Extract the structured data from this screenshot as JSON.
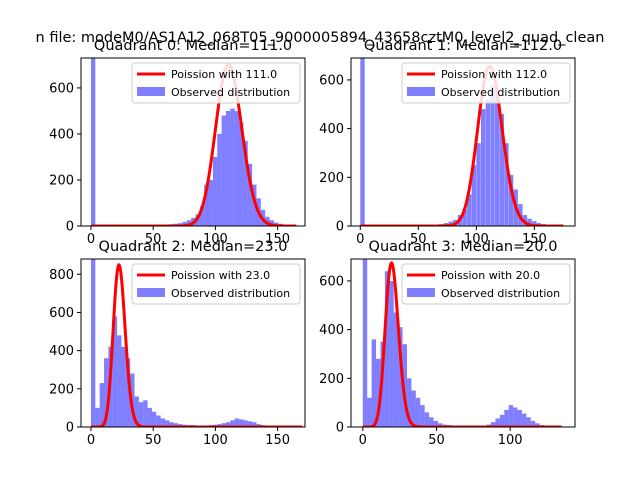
{
  "suptitle": "n file: modeM0/AS1A12_068T05_9000005894_43658cztM0_level2_quad_clean",
  "colors": {
    "hist": "#0000ff",
    "hist_opacity": 0.5,
    "fit": "#ff0000",
    "axes": "#000000",
    "legend_border": "#cccccc"
  },
  "chart_data": [
    {
      "type": "bar",
      "title": "Quadrant 0: Median=111.0",
      "xlabel": "",
      "ylabel": "",
      "xlim": [
        -8,
        172
      ],
      "ylim": [
        0,
        730
      ],
      "xticks": [
        0,
        50,
        100,
        150
      ],
      "yticks": [
        0,
        200,
        400,
        600
      ],
      "grid": false,
      "legend_position": "top-right",
      "bin_width": 3.5,
      "hist": {
        "name": "Observed distribution",
        "values": [
          {
            "x": 0,
            "y": 730
          },
          {
            "x": 59.5,
            "y": 5
          },
          {
            "x": 63,
            "y": 8
          },
          {
            "x": 66.5,
            "y": 10
          },
          {
            "x": 70,
            "y": 12
          },
          {
            "x": 73.5,
            "y": 18
          },
          {
            "x": 77,
            "y": 25
          },
          {
            "x": 80.5,
            "y": 35
          },
          {
            "x": 84,
            "y": 50
          },
          {
            "x": 87.5,
            "y": 85
          },
          {
            "x": 91,
            "y": 180
          },
          {
            "x": 94.5,
            "y": 200
          },
          {
            "x": 98,
            "y": 300
          },
          {
            "x": 101.5,
            "y": 400
          },
          {
            "x": 105,
            "y": 480
          },
          {
            "x": 108.5,
            "y": 500
          },
          {
            "x": 112,
            "y": 510
          },
          {
            "x": 115.5,
            "y": 500
          },
          {
            "x": 119,
            "y": 450
          },
          {
            "x": 122.5,
            "y": 370
          },
          {
            "x": 126,
            "y": 270
          },
          {
            "x": 129.5,
            "y": 180
          },
          {
            "x": 133,
            "y": 120
          },
          {
            "x": 136.5,
            "y": 70
          },
          {
            "x": 140,
            "y": 40
          },
          {
            "x": 143.5,
            "y": 25
          },
          {
            "x": 147,
            "y": 15
          },
          {
            "x": 150.5,
            "y": 10
          },
          {
            "x": 154,
            "y": 6
          },
          {
            "x": 157.5,
            "y": 4
          }
        ]
      },
      "series": [
        {
          "name": "Poission with 111.0",
          "mean": 111.0,
          "scale": 700,
          "x_range": [
            0,
            165
          ],
          "legend_style": "line"
        }
      ]
    },
    {
      "type": "bar",
      "title": "Quadrant 1: Median=112.0",
      "xlabel": "",
      "ylabel": "",
      "xlim": [
        -8,
        185
      ],
      "ylim": [
        0,
        690
      ],
      "xticks": [
        0,
        50,
        100,
        150
      ],
      "yticks": [
        0,
        200,
        400,
        600
      ],
      "grid": false,
      "legend_position": "top-right",
      "bin_width": 3.8,
      "hist": {
        "name": "Observed distribution",
        "values": [
          {
            "x": 0,
            "y": 690
          },
          {
            "x": 64,
            "y": 5
          },
          {
            "x": 68,
            "y": 8
          },
          {
            "x": 72,
            "y": 12
          },
          {
            "x": 76,
            "y": 18
          },
          {
            "x": 80,
            "y": 25
          },
          {
            "x": 84,
            "y": 45
          },
          {
            "x": 88,
            "y": 70
          },
          {
            "x": 92,
            "y": 130
          },
          {
            "x": 96,
            "y": 250
          },
          {
            "x": 100,
            "y": 340
          },
          {
            "x": 104,
            "y": 480
          },
          {
            "x": 108,
            "y": 520
          },
          {
            "x": 112,
            "y": 580
          },
          {
            "x": 116,
            "y": 560
          },
          {
            "x": 120,
            "y": 460
          },
          {
            "x": 124,
            "y": 340
          },
          {
            "x": 128,
            "y": 210
          },
          {
            "x": 132,
            "y": 150
          },
          {
            "x": 136,
            "y": 90
          },
          {
            "x": 140,
            "y": 45
          },
          {
            "x": 144,
            "y": 30
          },
          {
            "x": 148,
            "y": 20
          },
          {
            "x": 152,
            "y": 12
          },
          {
            "x": 156,
            "y": 8
          },
          {
            "x": 160,
            "y": 5
          },
          {
            "x": 164,
            "y": 3
          }
        ]
      },
      "series": [
        {
          "name": "Poission with 112.0",
          "mean": 112.0,
          "scale": 655,
          "x_range": [
            0,
            175
          ],
          "legend_style": "line"
        }
      ]
    },
    {
      "type": "bar",
      "title": "Quadrant 2: Median=23.0",
      "xlabel": "",
      "ylabel": "",
      "xlim": [
        -8,
        172
      ],
      "ylim": [
        0,
        880
      ],
      "xticks": [
        0,
        50,
        100,
        150
      ],
      "yticks": [
        0,
        200,
        400,
        600,
        800
      ],
      "grid": false,
      "legend_position": "top-right",
      "bin_width": 3.5,
      "hist": {
        "name": "Observed distribution",
        "values": [
          {
            "x": 0,
            "y": 880
          },
          {
            "x": 3.5,
            "y": 100
          },
          {
            "x": 7,
            "y": 230
          },
          {
            "x": 10.5,
            "y": 360
          },
          {
            "x": 14,
            "y": 420
          },
          {
            "x": 17.5,
            "y": 580
          },
          {
            "x": 21,
            "y": 480
          },
          {
            "x": 24.5,
            "y": 420
          },
          {
            "x": 28,
            "y": 360
          },
          {
            "x": 31.5,
            "y": 280
          },
          {
            "x": 35,
            "y": 160
          },
          {
            "x": 38.5,
            "y": 130
          },
          {
            "x": 42,
            "y": 140
          },
          {
            "x": 45.5,
            "y": 100
          },
          {
            "x": 49,
            "y": 80
          },
          {
            "x": 52.5,
            "y": 60
          },
          {
            "x": 56,
            "y": 45
          },
          {
            "x": 59.5,
            "y": 35
          },
          {
            "x": 63,
            "y": 25
          },
          {
            "x": 66.5,
            "y": 20
          },
          {
            "x": 70,
            "y": 15
          },
          {
            "x": 73.5,
            "y": 12
          },
          {
            "x": 77,
            "y": 10
          },
          {
            "x": 80.5,
            "y": 10
          },
          {
            "x": 84,
            "y": 8
          },
          {
            "x": 87.5,
            "y": 8
          },
          {
            "x": 91,
            "y": 8
          },
          {
            "x": 94.5,
            "y": 10
          },
          {
            "x": 98,
            "y": 12
          },
          {
            "x": 101.5,
            "y": 15
          },
          {
            "x": 105,
            "y": 20
          },
          {
            "x": 108.5,
            "y": 25
          },
          {
            "x": 112,
            "y": 35
          },
          {
            "x": 115.5,
            "y": 45
          },
          {
            "x": 119,
            "y": 40
          },
          {
            "x": 122.5,
            "y": 35
          },
          {
            "x": 126,
            "y": 30
          },
          {
            "x": 129.5,
            "y": 25
          },
          {
            "x": 133,
            "y": 15
          },
          {
            "x": 136.5,
            "y": 10
          },
          {
            "x": 140,
            "y": 5
          }
        ]
      },
      "series": [
        {
          "name": "Poission with 23.0",
          "mean": 23.0,
          "scale": 845,
          "x_range": [
            0,
            170
          ],
          "legend_style": "line"
        }
      ]
    },
    {
      "type": "bar",
      "title": "Quadrant 3: Median=20.0",
      "xlabel": "",
      "ylabel": "",
      "xlim": [
        -8,
        144
      ],
      "ylim": [
        0,
        690
      ],
      "xticks": [
        0,
        50,
        100
      ],
      "yticks": [
        0,
        200,
        400,
        600
      ],
      "grid": false,
      "legend_position": "top-right",
      "bin_width": 3.0,
      "hist": {
        "name": "Observed distribution",
        "values": [
          {
            "x": 0,
            "y": 690
          },
          {
            "x": 3,
            "y": 120
          },
          {
            "x": 6,
            "y": 360
          },
          {
            "x": 9,
            "y": 280
          },
          {
            "x": 12,
            "y": 350
          },
          {
            "x": 15,
            "y": 640
          },
          {
            "x": 18,
            "y": 600
          },
          {
            "x": 21,
            "y": 470
          },
          {
            "x": 24,
            "y": 410
          },
          {
            "x": 27,
            "y": 340
          },
          {
            "x": 30,
            "y": 200
          },
          {
            "x": 33,
            "y": 150
          },
          {
            "x": 36,
            "y": 120
          },
          {
            "x": 39,
            "y": 90
          },
          {
            "x": 42,
            "y": 60
          },
          {
            "x": 45,
            "y": 40
          },
          {
            "x": 48,
            "y": 25
          },
          {
            "x": 51,
            "y": 15
          },
          {
            "x": 54,
            "y": 10
          },
          {
            "x": 57,
            "y": 8
          },
          {
            "x": 60,
            "y": 5
          },
          {
            "x": 84,
            "y": 10
          },
          {
            "x": 87,
            "y": 20
          },
          {
            "x": 90,
            "y": 35
          },
          {
            "x": 93,
            "y": 50
          },
          {
            "x": 96,
            "y": 70
          },
          {
            "x": 99,
            "y": 90
          },
          {
            "x": 102,
            "y": 80
          },
          {
            "x": 105,
            "y": 70
          },
          {
            "x": 108,
            "y": 55
          },
          {
            "x": 111,
            "y": 40
          },
          {
            "x": 114,
            "y": 25
          },
          {
            "x": 117,
            "y": 15
          },
          {
            "x": 120,
            "y": 8
          }
        ]
      },
      "series": [
        {
          "name": "Poission with 20.0",
          "mean": 20.0,
          "scale": 670,
          "x_range": [
            0,
            135
          ],
          "legend_style": "line"
        }
      ]
    }
  ]
}
